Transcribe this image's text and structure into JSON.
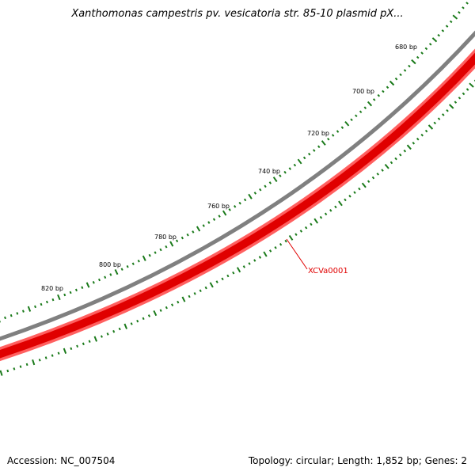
{
  "title": "Xanthomonas campestris pv. vesicatoria str. 85-10 plasmid pX...",
  "footer": {
    "accession": "Accession: NC_007504",
    "topology": "Topology: circular; Length: 1,852 bp; Genes: 2"
  },
  "ruler": {
    "tick_labels": [
      "680 bp",
      "700 bp",
      "720 bp",
      "740 bp",
      "760 bp",
      "780 bp",
      "800 bp",
      "820 bp"
    ],
    "tick_color": "#1a7a1a"
  },
  "tracks": {
    "backbone_color": "#808080",
    "gene_color": "#e00000",
    "gene_highlight_color": "#ff6060"
  },
  "genes": [
    {
      "label": "XCVa0001",
      "color": "#e00000"
    }
  ]
}
